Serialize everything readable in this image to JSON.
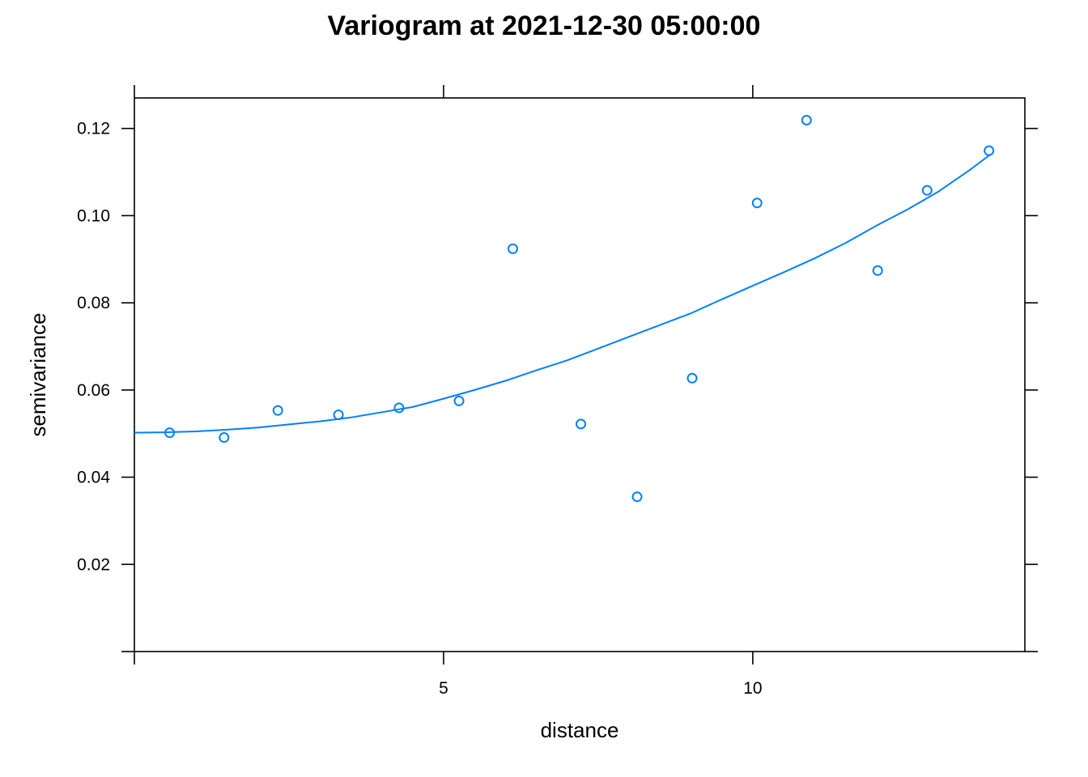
{
  "chart_data": {
    "type": "scatter",
    "title": "Variogram at 2021-12-30 05:00:00",
    "xlabel": "distance",
    "ylabel": "semivariance",
    "xlim": [
      0,
      14.4
    ],
    "ylim": [
      0,
      0.127
    ],
    "x_ticks": [
      5,
      10
    ],
    "x_tick_labels": [
      "5",
      "10"
    ],
    "y_ticks": [
      0.02,
      0.04,
      0.06,
      0.08,
      0.1,
      0.12
    ],
    "y_tick_labels": [
      "0.02",
      "0.04",
      "0.06",
      "0.08",
      "0.10",
      "0.12"
    ],
    "grid": false,
    "legend": "none",
    "color": "#0080ff",
    "points": {
      "x": [
        0.57,
        1.45,
        2.32,
        3.3,
        4.28,
        5.25,
        6.12,
        7.22,
        8.13,
        9.02,
        10.07,
        10.87,
        12.02,
        12.82,
        13.82
      ],
      "y": [
        0.0502,
        0.0491,
        0.0553,
        0.0543,
        0.0559,
        0.0575,
        0.0924,
        0.0522,
        0.0355,
        0.0627,
        0.1029,
        0.1219,
        0.0874,
        0.1058,
        0.1149
      ]
    },
    "fitted_model": {
      "x": [
        0,
        0.5,
        1,
        1.5,
        2,
        2.5,
        3,
        3.5,
        4,
        4.5,
        5,
        5.5,
        6,
        6.5,
        7,
        7.5,
        8,
        8.5,
        9,
        9.5,
        10,
        10.5,
        11,
        11.5,
        12,
        12.5,
        13,
        13.5,
        13.85
      ],
      "y": [
        0.0502,
        0.0503,
        0.0505,
        0.0509,
        0.0514,
        0.0521,
        0.0528,
        0.0537,
        0.0549,
        0.0561,
        0.058,
        0.06,
        0.0621,
        0.0645,
        0.0668,
        0.0695,
        0.0722,
        0.0749,
        0.0776,
        0.0808,
        0.0839,
        0.087,
        0.0902,
        0.0937,
        0.0977,
        0.1014,
        0.1055,
        0.1104,
        0.1141
      ]
    }
  }
}
